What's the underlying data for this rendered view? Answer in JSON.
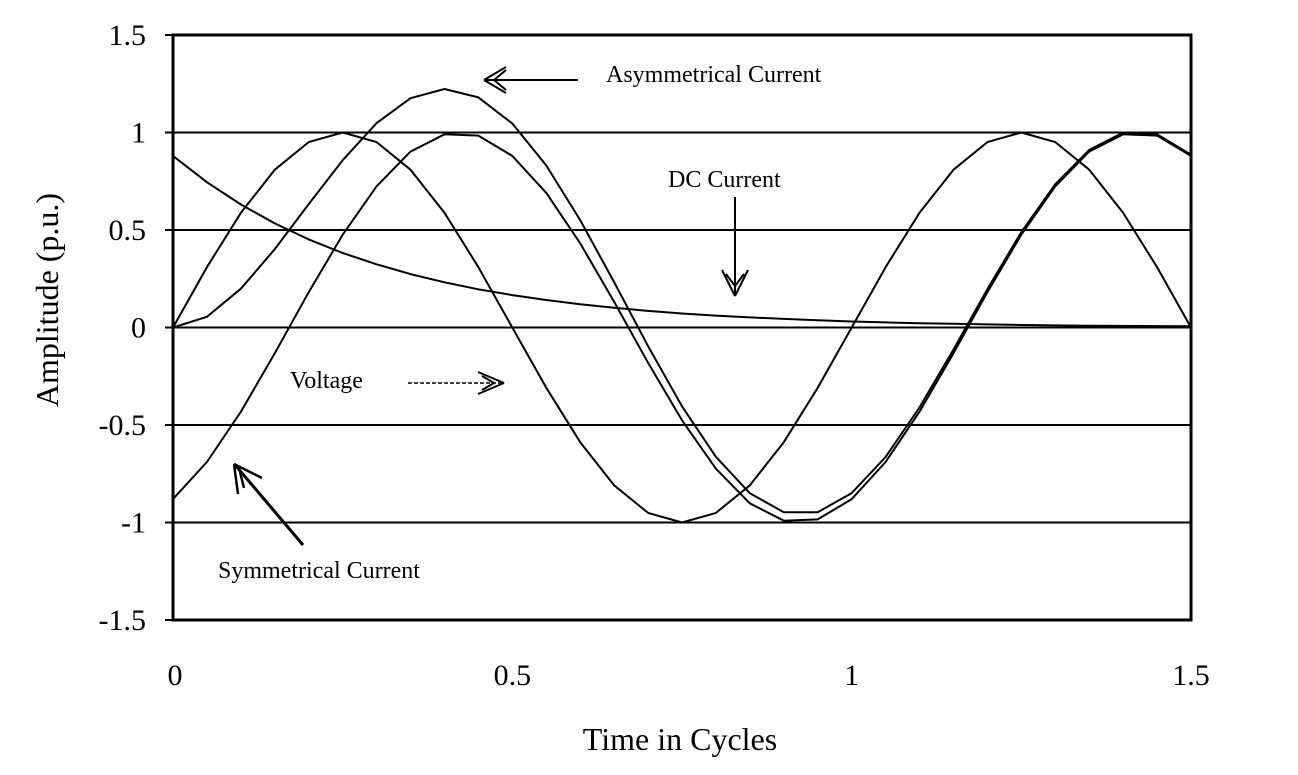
{
  "chart_data": {
    "type": "line",
    "title": "",
    "xlabel": "Time in Cycles",
    "ylabel": "Amplitude (p.u.)",
    "xlim": [
      0,
      1.5
    ],
    "ylim": [
      -1.5,
      1.5
    ],
    "x_ticks": [
      "0",
      "0.5",
      "1",
      "1.5"
    ],
    "x_tick_values": [
      0,
      0.5,
      1,
      1.5
    ],
    "y_ticks": [
      "1.5",
      "1",
      "0.5",
      "0",
      "-0.5",
      "-1",
      "-1.5"
    ],
    "y_tick_values": [
      1.5,
      1,
      0.5,
      0,
      -0.5,
      -1,
      -1.5
    ],
    "grid": {
      "horizontal": true,
      "vertical": false
    },
    "legend": "none (inline arrow annotations)",
    "x": [
      0,
      0.05,
      0.1,
      0.15,
      0.2,
      0.25,
      0.3,
      0.35,
      0.4,
      0.45,
      0.5,
      0.55,
      0.6,
      0.65,
      0.7,
      0.75,
      0.8,
      0.85,
      0.9,
      0.95,
      1.0,
      1.05,
      1.1,
      1.15,
      1.2,
      1.25,
      1.3,
      1.35,
      1.4,
      1.45,
      1.5
    ],
    "series": [
      {
        "name": "Voltage",
        "values": [
          0,
          0.309,
          0.588,
          0.809,
          0.951,
          1,
          0.951,
          0.809,
          0.588,
          0.309,
          0,
          -0.309,
          -0.588,
          -0.809,
          -0.951,
          -1,
          -0.951,
          -0.809,
          -0.588,
          -0.309,
          0,
          0.309,
          0.588,
          0.809,
          0.951,
          1,
          0.951,
          0.809,
          0.588,
          0.309,
          0
        ]
      },
      {
        "name": "Symmetrical Current",
        "values": [
          -0.88,
          -0.69,
          -0.432,
          -0.132,
          0.181,
          0.476,
          0.724,
          0.902,
          0.991,
          0.984,
          0.88,
          0.69,
          0.432,
          0.132,
          -0.181,
          -0.476,
          -0.724,
          -0.902,
          -0.991,
          -0.984,
          -0.88,
          -0.69,
          -0.432,
          -0.132,
          0.181,
          0.476,
          0.724,
          0.902,
          0.991,
          0.984,
          0.88
        ]
      },
      {
        "name": "DC Current",
        "values": [
          0.88,
          0.745,
          0.631,
          0.534,
          0.452,
          0.382,
          0.324,
          0.274,
          0.232,
          0.196,
          0.166,
          0.141,
          0.119,
          0.101,
          0.085,
          0.072,
          0.061,
          0.052,
          0.044,
          0.037,
          0.031,
          0.026,
          0.022,
          0.019,
          0.016,
          0.013,
          0.011,
          0.009,
          0.008,
          0.007,
          0.006
        ]
      },
      {
        "name": "Asymmetrical Current",
        "values": [
          0,
          0.055,
          0.199,
          0.402,
          0.633,
          0.858,
          1.048,
          1.176,
          1.223,
          1.18,
          1.046,
          0.831,
          0.551,
          0.233,
          -0.096,
          -0.404,
          -0.663,
          -0.85,
          -0.947,
          -0.947,
          -0.849,
          -0.664,
          -0.41,
          -0.113,
          0.197,
          0.489,
          0.735,
          0.911,
          0.999,
          0.991,
          0.886
        ]
      }
    ],
    "annotations": [
      {
        "text": "Asymmetrical Current",
        "arrow": "left",
        "points_to_x": 0.46,
        "points_to_y": 1.25
      },
      {
        "text": "DC Current",
        "arrow": "down",
        "points_to_x": 0.83,
        "points_to_y": 0.17
      },
      {
        "text": "Voltage",
        "arrow": "right",
        "points_to_x": 0.49,
        "points_to_y": -0.28
      },
      {
        "text": "Symmetrical Current",
        "arrow": "up-left",
        "points_to_x": 0.09,
        "points_to_y": -0.7
      }
    ]
  },
  "labels": {
    "xlabel": "Time in Cycles",
    "ylabel": "Amplitude (p.u.)",
    "annot_asym": "Asymmetrical Current",
    "annot_dc": "DC Current",
    "annot_voltage": "Voltage",
    "annot_sym": "Symmetrical Current"
  }
}
